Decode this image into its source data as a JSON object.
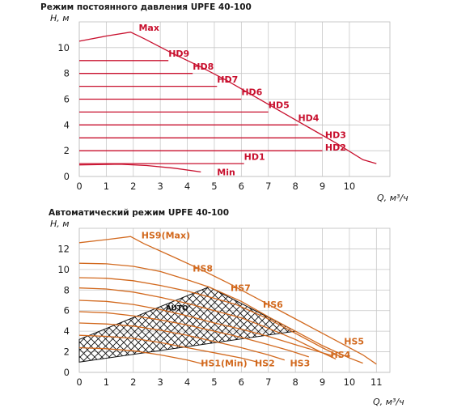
{
  "chart_data": [
    {
      "type": "line",
      "title": "Режим постоянного давления UPFE 40-100",
      "ylabel": "H, м",
      "xlabel": "Q, м³/ч",
      "xlim": [
        0,
        11.5
      ],
      "ylim": [
        0,
        12
      ],
      "x_ticks": [
        "0",
        "1",
        "2",
        "3",
        "4",
        "5",
        "6",
        "7",
        "8",
        "9",
        "10"
      ],
      "y_ticks": [
        "0",
        "2",
        "4",
        "6",
        "8",
        "10"
      ],
      "grid": true,
      "series": [
        {
          "name": "Max",
          "points": [
            [
              0,
              10.5
            ],
            [
              1,
              10.9
            ],
            [
              1.9,
              11.2
            ],
            [
              2.4,
              10.7
            ],
            [
              3.5,
              9.5
            ],
            [
              4.5,
              8.5
            ],
            [
              5.5,
              7.4
            ],
            [
              6.5,
              6.2
            ],
            [
              7.5,
              5.0
            ],
            [
              8.5,
              3.8
            ],
            [
              9.5,
              2.6
            ],
            [
              10.5,
              1.3
            ],
            [
              11,
              1.0
            ]
          ]
        },
        {
          "name": "HD9",
          "points": [
            [
              0,
              9
            ],
            [
              3.3,
              9
            ]
          ]
        },
        {
          "name": "HD8",
          "points": [
            [
              0,
              8
            ],
            [
              4.2,
              8
            ]
          ]
        },
        {
          "name": "HD7",
          "points": [
            [
              0,
              7
            ],
            [
              5.1,
              7
            ]
          ]
        },
        {
          "name": "HD6",
          "points": [
            [
              0,
              6
            ],
            [
              6.0,
              6
            ]
          ]
        },
        {
          "name": "HD5",
          "points": [
            [
              0,
              5
            ],
            [
              7.0,
              5
            ]
          ]
        },
        {
          "name": "HD4",
          "points": [
            [
              0,
              4
            ],
            [
              8.1,
              4
            ]
          ]
        },
        {
          "name": "HD3",
          "points": [
            [
              0,
              3
            ],
            [
              9.0,
              3
            ]
          ]
        },
        {
          "name": "HD2",
          "points": [
            [
              0,
              2
            ],
            [
              9.0,
              2
            ]
          ]
        },
        {
          "name": "HD1",
          "points": [
            [
              0,
              1
            ],
            [
              6.1,
              1
            ]
          ]
        },
        {
          "name": "Min",
          "points": [
            [
              0,
              0.9
            ],
            [
              1.5,
              0.95
            ],
            [
              2.5,
              0.85
            ],
            [
              3.5,
              0.65
            ],
            [
              4.5,
              0.35
            ]
          ]
        }
      ]
    },
    {
      "type": "line",
      "title": "Автоматический режим UPFE 40-100",
      "ylabel": "H, м",
      "xlabel": "Q, м³/ч",
      "xlim": [
        0,
        11.5
      ],
      "ylim": [
        0,
        14
      ],
      "x_ticks": [
        "0",
        "1",
        "2",
        "3",
        "4",
        "5",
        "6",
        "7",
        "8",
        "9",
        "10",
        "11"
      ],
      "y_ticks": [
        "0",
        "2",
        "4",
        "6",
        "8",
        "10",
        "12"
      ],
      "grid": true,
      "auto_zone_label": "AUTO",
      "series": [
        {
          "name": "HS9(Max)",
          "points": [
            [
              0,
              12.6
            ],
            [
              1,
              12.9
            ],
            [
              1.9,
              13.2
            ],
            [
              2.4,
              12.5
            ],
            [
              3.5,
              11.2
            ],
            [
              4.5,
              10.0
            ],
            [
              5.5,
              8.7
            ],
            [
              6.5,
              7.3
            ],
            [
              7.5,
              5.9
            ],
            [
              8.5,
              4.5
            ],
            [
              9.5,
              3.1
            ],
            [
              10.5,
              1.7
            ],
            [
              11,
              0.8
            ]
          ]
        },
        {
          "name": "HS8",
          "points": [
            [
              0,
              10.6
            ],
            [
              1,
              10.55
            ],
            [
              2,
              10.3
            ],
            [
              3,
              9.8
            ],
            [
              4,
              9.0
            ],
            [
              4.8,
              8.3
            ],
            [
              6,
              6.9
            ],
            [
              7,
              5.4
            ],
            [
              8,
              4.0
            ],
            [
              9,
              2.6
            ],
            [
              10,
              1.4
            ],
            [
              10.5,
              0.9
            ]
          ]
        },
        {
          "name": "HS7",
          "points": [
            [
              0,
              9.2
            ],
            [
              1,
              9.15
            ],
            [
              2,
              8.9
            ],
            [
              3,
              8.45
            ],
            [
              4,
              7.9
            ],
            [
              5,
              7.2
            ],
            [
              5.8,
              6.6
            ],
            [
              7,
              5.2
            ],
            [
              8,
              3.8
            ],
            [
              9,
              2.4
            ],
            [
              9.7,
              1.5
            ]
          ]
        },
        {
          "name": "HS6",
          "points": [
            [
              0,
              8.2
            ],
            [
              1,
              8.1
            ],
            [
              2,
              7.8
            ],
            [
              3,
              7.3
            ],
            [
              4,
              6.7
            ],
            [
              5,
              6.0
            ],
            [
              6,
              5.3
            ],
            [
              6.8,
              4.5
            ],
            [
              8,
              3.2
            ],
            [
              9,
              1.9
            ],
            [
              9.5,
              1.3
            ]
          ]
        },
        {
          "name": "HS5",
          "points": [
            [
              0,
              7.0
            ],
            [
              1,
              6.9
            ],
            [
              2,
              6.6
            ],
            [
              3,
              6.1
            ],
            [
              4,
              5.5
            ],
            [
              5,
              4.8
            ],
            [
              6,
              4.2
            ],
            [
              7,
              3.5
            ],
            [
              8,
              2.7
            ],
            [
              9,
              1.9
            ],
            [
              9.4,
              1.6
            ]
          ]
        },
        {
          "name": "HS4",
          "points": [
            [
              0,
              5.9
            ],
            [
              1,
              5.8
            ],
            [
              2,
              5.5
            ],
            [
              3,
              5.1
            ],
            [
              4,
              4.6
            ],
            [
              5,
              4.0
            ],
            [
              6,
              3.4
            ],
            [
              7,
              2.7
            ],
            [
              7.8,
              2.1
            ],
            [
              8.5,
              1.5
            ]
          ]
        },
        {
          "name": "HS3",
          "points": [
            [
              0,
              4.8
            ],
            [
              1,
              4.7
            ],
            [
              2,
              4.5
            ],
            [
              3,
              4.1
            ],
            [
              4,
              3.6
            ],
            [
              5,
              3.0
            ],
            [
              6,
              2.4
            ],
            [
              7,
              1.7
            ],
            [
              7.6,
              1.2
            ]
          ]
        },
        {
          "name": "HS2",
          "points": [
            [
              0,
              3.6
            ],
            [
              1,
              3.5
            ],
            [
              2,
              3.3
            ],
            [
              3,
              2.9
            ],
            [
              4,
              2.4
            ],
            [
              5,
              1.9
            ],
            [
              6,
              1.4
            ],
            [
              6.6,
              1.0
            ]
          ]
        },
        {
          "name": "HS1(Min)",
          "points": [
            [
              0,
              2.4
            ],
            [
              1,
              2.3
            ],
            [
              2,
              2.1
            ],
            [
              3,
              1.7
            ],
            [
              4,
              1.2
            ],
            [
              4.6,
              0.8
            ]
          ]
        }
      ],
      "auto_zone_polygon": [
        [
          0,
          3.2
        ],
        [
          4.8,
          8.3
        ],
        [
          8,
          4.0
        ],
        [
          0,
          1.0
        ]
      ]
    }
  ],
  "colors": {
    "red": "#c8102e",
    "orange": "#d2691e",
    "grid": "#c8c8c8",
    "axis": "#1a1a1a"
  },
  "label_positions": {
    "chart1": {
      "Max": [
        2.2,
        11.3
      ],
      "HD9": [
        3.3,
        9.3
      ],
      "HD8": [
        4.2,
        8.3
      ],
      "HD7": [
        5.1,
        7.3
      ],
      "HD6": [
        6.0,
        6.3
      ],
      "HD5": [
        7.0,
        5.3
      ],
      "HD4": [
        8.1,
        4.3
      ],
      "HD3": [
        9.1,
        3.0
      ],
      "HD2": [
        9.1,
        2.0
      ],
      "HD1": [
        6.1,
        1.3
      ],
      "Min": [
        5.1,
        0.1
      ]
    },
    "chart2": {
      "HS9(Max)": [
        2.3,
        13.0
      ],
      "HS8": [
        4.2,
        9.8
      ],
      "HS7": [
        5.6,
        7.9
      ],
      "HS6": [
        6.8,
        6.3
      ],
      "HS5": [
        9.8,
        2.7
      ],
      "HS4": [
        9.3,
        1.4
      ],
      "HS3": [
        7.8,
        0.6
      ],
      "HS2": [
        6.5,
        0.6
      ],
      "HS1(Min)": [
        4.5,
        0.6
      ],
      "AUTO": [
        3.2,
        6.0
      ]
    }
  }
}
